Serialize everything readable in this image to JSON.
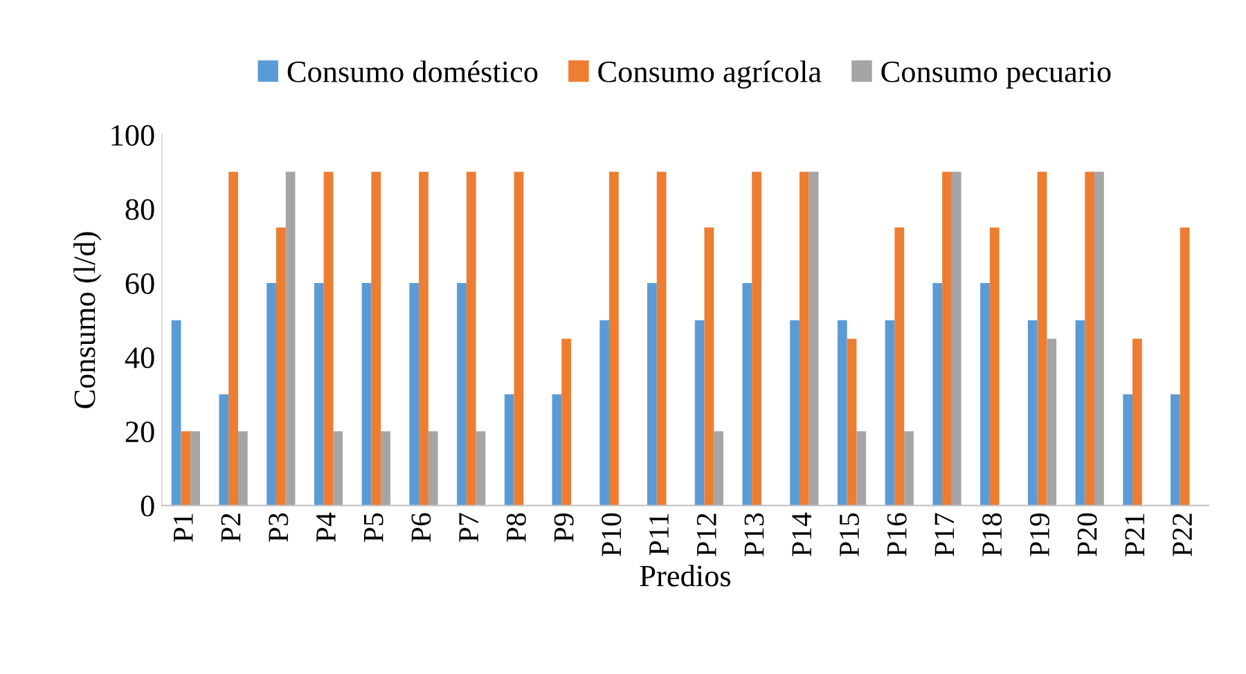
{
  "chart_data": {
    "type": "bar",
    "xlabel": "Predios",
    "ylabel": "Consumo (l/d)",
    "categories": [
      "P1",
      "P2",
      "P3",
      "P4",
      "P5",
      "P6",
      "P7",
      "P8",
      "P9",
      "P10",
      "P11",
      "P12",
      "P13",
      "P14",
      "P15",
      "P16",
      "P17",
      "P18",
      "P19",
      "P20",
      "P21",
      "P22"
    ],
    "series": [
      {
        "name": "Consumo doméstico",
        "color": "#5b9bd5",
        "values": [
          50,
          30,
          60,
          60,
          60,
          60,
          60,
          30,
          30,
          50,
          60,
          50,
          60,
          50,
          50,
          50,
          60,
          60,
          50,
          50,
          30,
          30
        ]
      },
      {
        "name": "Consumo agrícola",
        "color": "#ed7d31",
        "values": [
          20,
          90,
          75,
          90,
          90,
          90,
          90,
          90,
          45,
          90,
          90,
          75,
          90,
          90,
          45,
          75,
          90,
          75,
          90,
          90,
          45,
          75
        ]
      },
      {
        "name": "Consumo pecuario",
        "color": "#a5a5a5",
        "values": [
          20,
          20,
          90,
          20,
          20,
          20,
          20,
          0,
          0,
          0,
          0,
          20,
          0,
          90,
          20,
          20,
          90,
          0,
          45,
          90,
          0,
          0
        ]
      }
    ],
    "ylim": [
      0,
      100
    ],
    "yticks": [
      0,
      20,
      40,
      60,
      80,
      100
    ],
    "grid": false,
    "legend": "top"
  }
}
